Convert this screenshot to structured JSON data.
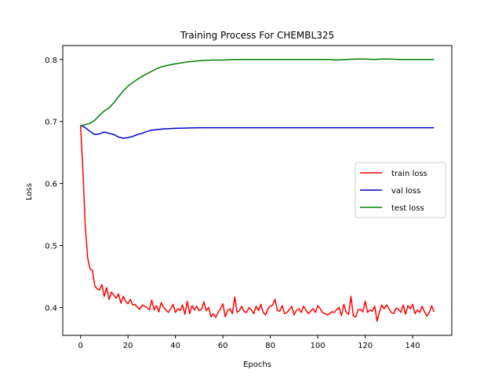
{
  "chart_data": {
    "type": "line",
    "title": "Training Process For CHEMBL325",
    "xlabel": "Epochs",
    "ylabel": "Loss",
    "xlim": [
      -7.5,
      156.5
    ],
    "ylim": [
      0.355,
      0.8225
    ],
    "xticks": [
      0,
      20,
      40,
      60,
      80,
      100,
      120,
      140
    ],
    "yticks": [
      0.4,
      0.5,
      0.6,
      0.7,
      0.8
    ],
    "ytick_labels": [
      "0.4",
      "0.5",
      "0.6",
      "0.7",
      "0.8"
    ],
    "grid": false,
    "legend_position": "center-right",
    "series": [
      {
        "name": "train loss",
        "color": "#ff0000",
        "keypoints": [
          [
            0,
            0.693
          ],
          [
            1,
            0.62
          ],
          [
            2,
            0.53
          ],
          [
            3,
            0.48
          ],
          [
            4,
            0.462
          ],
          [
            5,
            0.46
          ],
          [
            6,
            0.435
          ],
          [
            7,
            0.43
          ],
          [
            8,
            0.428
          ],
          [
            9,
            0.437
          ],
          [
            10,
            0.418
          ],
          [
            11,
            0.432
          ],
          [
            12,
            0.413
          ],
          [
            13,
            0.425
          ],
          [
            14,
            0.42
          ],
          [
            15,
            0.415
          ],
          [
            16,
            0.422
          ],
          [
            17,
            0.407
          ],
          [
            18,
            0.418
          ],
          [
            19,
            0.41
          ],
          [
            20,
            0.406
          ],
          [
            21,
            0.413
          ],
          [
            22,
            0.404
          ],
          [
            23,
            0.405
          ],
          [
            24,
            0.4
          ],
          [
            25,
            0.397
          ],
          [
            26,
            0.404
          ],
          [
            27,
            0.402
          ],
          [
            28,
            0.4
          ],
          [
            29,
            0.396
          ],
          [
            30,
            0.412
          ],
          [
            31,
            0.396
          ],
          [
            32,
            0.403
          ],
          [
            33,
            0.393
          ],
          [
            34,
            0.408
          ],
          [
            35,
            0.4
          ],
          [
            36,
            0.396
          ],
          [
            37,
            0.392
          ],
          [
            38,
            0.398
          ],
          [
            39,
            0.405
          ],
          [
            40,
            0.392
          ],
          [
            41,
            0.398
          ],
          [
            42,
            0.395
          ],
          [
            43,
            0.404
          ],
          [
            44,
            0.389
          ],
          [
            45,
            0.41
          ],
          [
            46,
            0.39
          ],
          [
            47,
            0.403
          ],
          [
            48,
            0.396
          ],
          [
            49,
            0.402
          ],
          [
            50,
            0.395
          ],
          [
            51,
            0.397
          ],
          [
            52,
            0.409
          ],
          [
            53,
            0.395
          ],
          [
            54,
            0.4
          ],
          [
            55,
            0.385
          ],
          [
            56,
            0.39
          ],
          [
            57,
            0.384
          ],
          [
            58,
            0.392
          ],
          [
            59,
            0.398
          ],
          [
            60,
            0.406
          ],
          [
            61,
            0.385
          ],
          [
            62,
            0.395
          ],
          [
            63,
            0.398
          ],
          [
            64,
            0.39
          ],
          [
            65,
            0.417
          ],
          [
            66,
            0.392
          ],
          [
            67,
            0.395
          ],
          [
            68,
            0.402
          ],
          [
            69,
            0.393
          ],
          [
            70,
            0.392
          ],
          [
            71,
            0.4
          ],
          [
            72,
            0.396
          ],
          [
            73,
            0.39
          ],
          [
            74,
            0.402
          ],
          [
            75,
            0.395
          ],
          [
            76,
            0.405
          ],
          [
            77,
            0.392
          ],
          [
            78,
            0.388
          ],
          [
            79,
            0.398
          ],
          [
            80,
            0.402
          ],
          [
            81,
            0.404
          ],
          [
            82,
            0.413
          ],
          [
            83,
            0.395
          ],
          [
            84,
            0.394
          ],
          [
            85,
            0.403
          ],
          [
            86,
            0.39
          ],
          [
            87,
            0.392
          ],
          [
            88,
            0.396
          ],
          [
            89,
            0.402
          ],
          [
            90,
            0.388
          ],
          [
            91,
            0.395
          ],
          [
            92,
            0.398
          ],
          [
            93,
            0.392
          ],
          [
            94,
            0.402
          ],
          [
            95,
            0.396
          ],
          [
            96,
            0.39
          ],
          [
            97,
            0.394
          ],
          [
            98,
            0.398
          ],
          [
            99,
            0.392
          ],
          [
            100,
            0.403
          ],
          [
            101,
            0.398
          ],
          [
            102,
            0.392
          ],
          [
            103,
            0.39
          ],
          [
            104,
            0.388
          ],
          [
            105,
            0.39
          ],
          [
            106,
            0.393
          ],
          [
            107,
            0.392
          ],
          [
            108,
            0.397
          ],
          [
            109,
            0.4
          ],
          [
            110,
            0.387
          ],
          [
            111,
            0.405
          ],
          [
            112,
            0.392
          ],
          [
            113,
            0.389
          ],
          [
            114,
            0.418
          ],
          [
            115,
            0.386
          ],
          [
            116,
            0.385
          ],
          [
            117,
            0.396
          ],
          [
            118,
            0.397
          ],
          [
            119,
            0.393
          ],
          [
            120,
            0.41
          ],
          [
            121,
            0.392
          ],
          [
            122,
            0.396
          ],
          [
            123,
            0.394
          ],
          [
            124,
            0.402
          ],
          [
            125,
            0.378
          ],
          [
            126,
            0.393
          ],
          [
            127,
            0.404
          ],
          [
            128,
            0.398
          ],
          [
            129,
            0.404
          ],
          [
            130,
            0.398
          ],
          [
            131,
            0.392
          ],
          [
            132,
            0.39
          ],
          [
            133,
            0.399
          ],
          [
            134,
            0.397
          ],
          [
            135,
            0.392
          ],
          [
            136,
            0.404
          ],
          [
            137,
            0.389
          ],
          [
            138,
            0.403
          ],
          [
            139,
            0.398
          ],
          [
            140,
            0.405
          ],
          [
            141,
            0.39
          ],
          [
            142,
            0.396
          ],
          [
            143,
            0.392
          ],
          [
            144,
            0.402
          ],
          [
            145,
            0.393
          ],
          [
            146,
            0.386
          ],
          [
            147,
            0.392
          ],
          [
            148,
            0.403
          ],
          [
            149,
            0.393
          ]
        ]
      },
      {
        "name": "val loss",
        "color": "#0000cc",
        "keypoints": [
          [
            0,
            0.694
          ],
          [
            2,
            0.69
          ],
          [
            4,
            0.684
          ],
          [
            6,
            0.679
          ],
          [
            8,
            0.68
          ],
          [
            10,
            0.683
          ],
          [
            12,
            0.681
          ],
          [
            14,
            0.679
          ],
          [
            16,
            0.675
          ],
          [
            18,
            0.673
          ],
          [
            20,
            0.674
          ],
          [
            22,
            0.676
          ],
          [
            24,
            0.679
          ],
          [
            26,
            0.681
          ],
          [
            28,
            0.684
          ],
          [
            30,
            0.686
          ],
          [
            35,
            0.688
          ],
          [
            40,
            0.689
          ],
          [
            50,
            0.69
          ],
          [
            60,
            0.69
          ],
          [
            70,
            0.69
          ],
          [
            80,
            0.69
          ],
          [
            90,
            0.69
          ],
          [
            100,
            0.69
          ],
          [
            110,
            0.69
          ],
          [
            120,
            0.69
          ],
          [
            130,
            0.69
          ],
          [
            140,
            0.69
          ],
          [
            149,
            0.69
          ]
        ]
      },
      {
        "name": "test loss",
        "color": "#008000",
        "keypoints": [
          [
            0,
            0.693
          ],
          [
            2,
            0.695
          ],
          [
            4,
            0.697
          ],
          [
            6,
            0.702
          ],
          [
            8,
            0.71
          ],
          [
            10,
            0.717
          ],
          [
            12,
            0.722
          ],
          [
            14,
            0.73
          ],
          [
            16,
            0.74
          ],
          [
            18,
            0.749
          ],
          [
            20,
            0.757
          ],
          [
            22,
            0.763
          ],
          [
            24,
            0.768
          ],
          [
            26,
            0.773
          ],
          [
            28,
            0.777
          ],
          [
            30,
            0.781
          ],
          [
            32,
            0.785
          ],
          [
            34,
            0.788
          ],
          [
            36,
            0.79
          ],
          [
            40,
            0.793
          ],
          [
            45,
            0.796
          ],
          [
            50,
            0.798
          ],
          [
            55,
            0.799
          ],
          [
            60,
            0.799
          ],
          [
            65,
            0.8
          ],
          [
            70,
            0.8
          ],
          [
            80,
            0.8
          ],
          [
            90,
            0.8
          ],
          [
            100,
            0.8
          ],
          [
            105,
            0.8
          ],
          [
            108,
            0.799
          ],
          [
            112,
            0.8
          ],
          [
            118,
            0.801
          ],
          [
            124,
            0.8
          ],
          [
            128,
            0.801
          ],
          [
            134,
            0.8
          ],
          [
            140,
            0.8
          ],
          [
            149,
            0.8
          ]
        ]
      }
    ]
  }
}
